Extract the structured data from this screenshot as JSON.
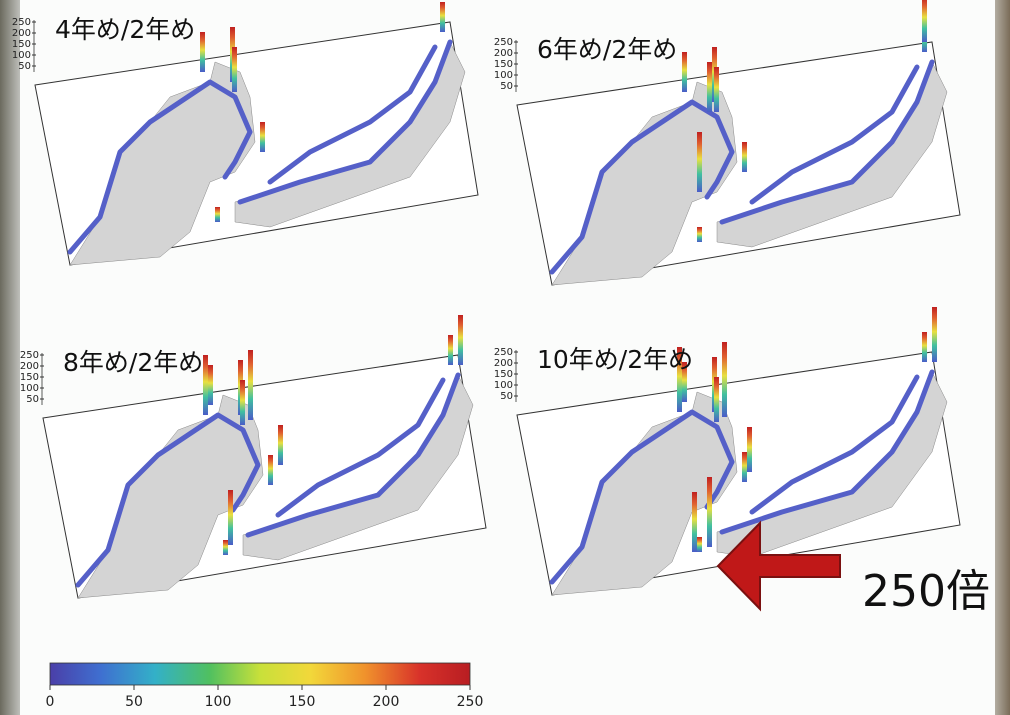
{
  "panels": [
    {
      "title": "4年め/2年め",
      "zticks": [
        250,
        200,
        150,
        100,
        50
      ]
    },
    {
      "title": "6年め/2年め",
      "zticks": [
        250,
        200,
        150,
        100,
        50
      ]
    },
    {
      "title": "8年め/2年め",
      "zticks": [
        250,
        200,
        150,
        100,
        50
      ]
    },
    {
      "title": "10年め/2年め",
      "zticks": [
        250,
        200,
        150,
        100,
        50
      ]
    }
  ],
  "colorbar": {
    "range": [
      0,
      250
    ],
    "ticks": [
      0,
      50,
      100,
      150,
      200,
      250
    ]
  },
  "annotation": "250倍"
}
